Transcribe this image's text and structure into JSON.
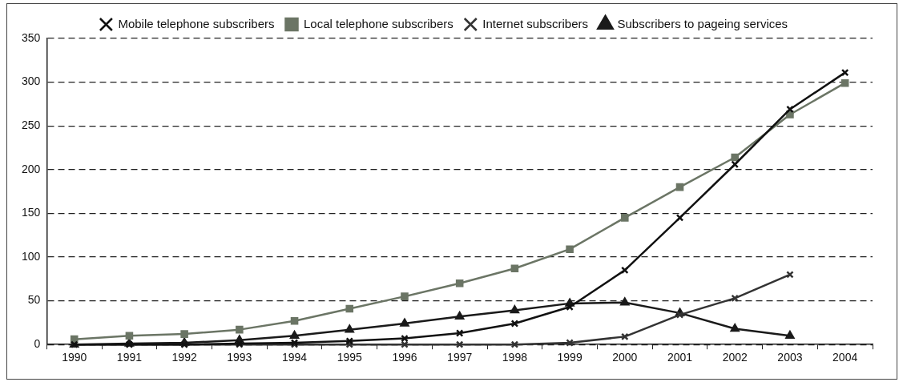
{
  "chart_data": {
    "type": "line",
    "categories": [
      "1990",
      "1991",
      "1992",
      "1993",
      "1994",
      "1995",
      "1996",
      "1997",
      "1998",
      "1999",
      "2000",
      "2001",
      "2002",
      "2003",
      "2004"
    ],
    "series": [
      {
        "name": "Mobile telephone subscribers",
        "color": "#111111",
        "marker": "cross",
        "values": [
          0,
          0,
          0,
          1,
          2,
          4,
          7,
          13,
          24,
          43,
          85,
          145,
          206,
          269,
          311
        ]
      },
      {
        "name": "Local telephone subscribers",
        "color": "#6b7565",
        "marker": "square",
        "values": [
          6,
          10,
          12,
          17,
          27,
          41,
          55,
          70,
          87,
          109,
          145,
          180,
          214,
          263,
          299
        ]
      },
      {
        "name": "Internet subscribers",
        "color": "#333333",
        "marker": "cross",
        "values": [
          0,
          0,
          0,
          0,
          0,
          0,
          0,
          0,
          0,
          2,
          9,
          34,
          53,
          80,
          null
        ]
      },
      {
        "name": "Subscribers to pageing services",
        "color": "#1a1a1a",
        "marker": "triangle",
        "values": [
          0,
          1,
          2,
          5,
          10,
          17,
          24,
          32,
          39,
          47,
          48,
          36,
          18,
          10,
          null
        ]
      }
    ],
    "ylim": [
      0,
      350
    ],
    "yticks": [
      0,
      50,
      100,
      150,
      200,
      250,
      300,
      350
    ],
    "grid": "y",
    "legend": "top",
    "line_style": "solid"
  }
}
